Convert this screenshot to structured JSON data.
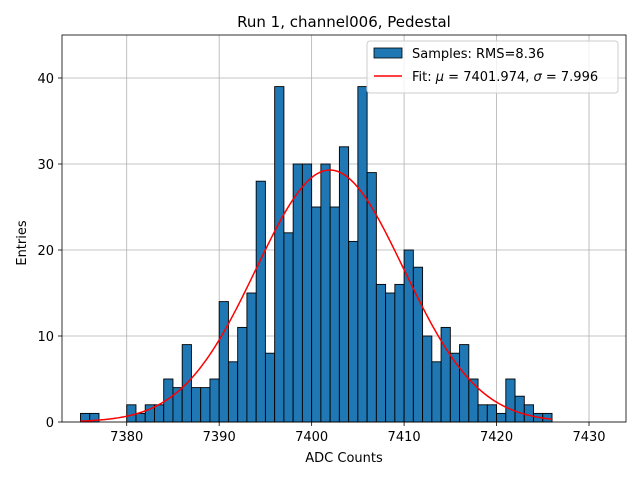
{
  "chart_data": {
    "type": "bar",
    "title": "Run 1, channel006, Pedestal",
    "xlabel": "ADC Counts",
    "ylabel": "Entries",
    "xlim": [
      7373,
      7434
    ],
    "ylim": [
      0,
      45
    ],
    "xticks": [
      7380,
      7390,
      7400,
      7410,
      7420,
      7430
    ],
    "yticks": [
      0,
      10,
      20,
      30,
      40
    ],
    "grid": true,
    "legend_position": "top-right",
    "bin_width": 1,
    "histogram": {
      "name": "Samples: RMS=8.36",
      "color": "#1f77b4",
      "edgecolor": "#000000",
      "x": [
        7375,
        7376,
        7377,
        7378,
        7379,
        7380,
        7381,
        7382,
        7383,
        7384,
        7385,
        7386,
        7387,
        7388,
        7389,
        7390,
        7391,
        7392,
        7393,
        7394,
        7395,
        7396,
        7397,
        7398,
        7399,
        7400,
        7401,
        7402,
        7403,
        7404,
        7405,
        7406,
        7407,
        7408,
        7409,
        7410,
        7411,
        7412,
        7413,
        7414,
        7415,
        7416,
        7417,
        7418,
        7419,
        7420,
        7421,
        7422,
        7423,
        7424,
        7425
      ],
      "values": [
        1,
        1,
        0,
        0,
        0,
        2,
        1,
        2,
        2,
        5,
        4,
        9,
        4,
        4,
        5,
        14,
        7,
        11,
        15,
        28,
        8,
        39,
        22,
        30,
        30,
        25,
        30,
        25,
        32,
        21,
        39,
        29,
        16,
        15,
        16,
        20,
        18,
        10,
        7,
        11,
        8,
        9,
        5,
        2,
        2,
        1,
        5,
        3,
        2,
        1,
        1
      ]
    },
    "fit": {
      "name_prefix": "Fit: ",
      "mu_symbol": "μ",
      "mu_text": " = 7401.974, ",
      "sigma_symbol": "σ",
      "sigma_text": " = 7.996",
      "color": "#ff0000",
      "mu": 7401.974,
      "sigma": 7.996,
      "amplitude": 29.3,
      "x_range": [
        7375,
        7426
      ]
    }
  }
}
